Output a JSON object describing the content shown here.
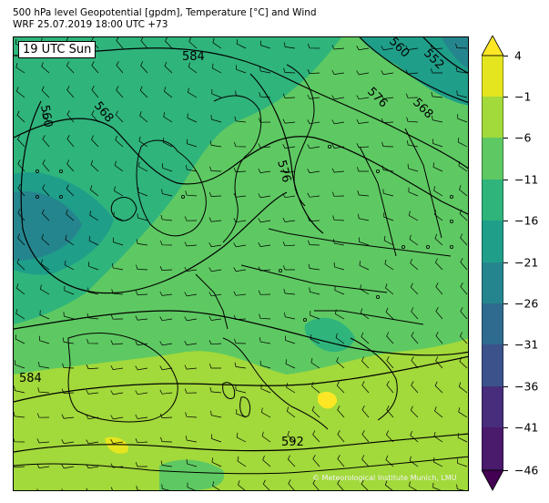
{
  "header": {
    "line1": "500 hPa level Geopotential [gpdm], Temperature [°C] and Wind",
    "line2": "WRF 25.07.2019 18:00 UTC +73"
  },
  "map": {
    "time_label": "19 UTC Sun",
    "copyright": "© Meteorological Institute Munich, LMU",
    "contour_labels": [
      "584",
      "560",
      "552",
      "560",
      "568",
      "576",
      "568",
      "576",
      "584",
      "592"
    ]
  },
  "colorbar": {
    "labels": [
      "4",
      "−1",
      "−6",
      "−11",
      "−16",
      "−21",
      "−26",
      "−31",
      "−36",
      "−41",
      "−46"
    ],
    "colors": {
      "c1": "#fde725",
      "c2": "#e4e51f",
      "c3": "#a2d93b",
      "c4": "#5ec962",
      "c5": "#2fb47c",
      "c6": "#1f9e89",
      "c7": "#25858e",
      "c8": "#2e6b8e",
      "c9": "#3b528b",
      "c10": "#472d7b",
      "c11": "#4a1a6d",
      "c12": "#440154"
    }
  }
}
